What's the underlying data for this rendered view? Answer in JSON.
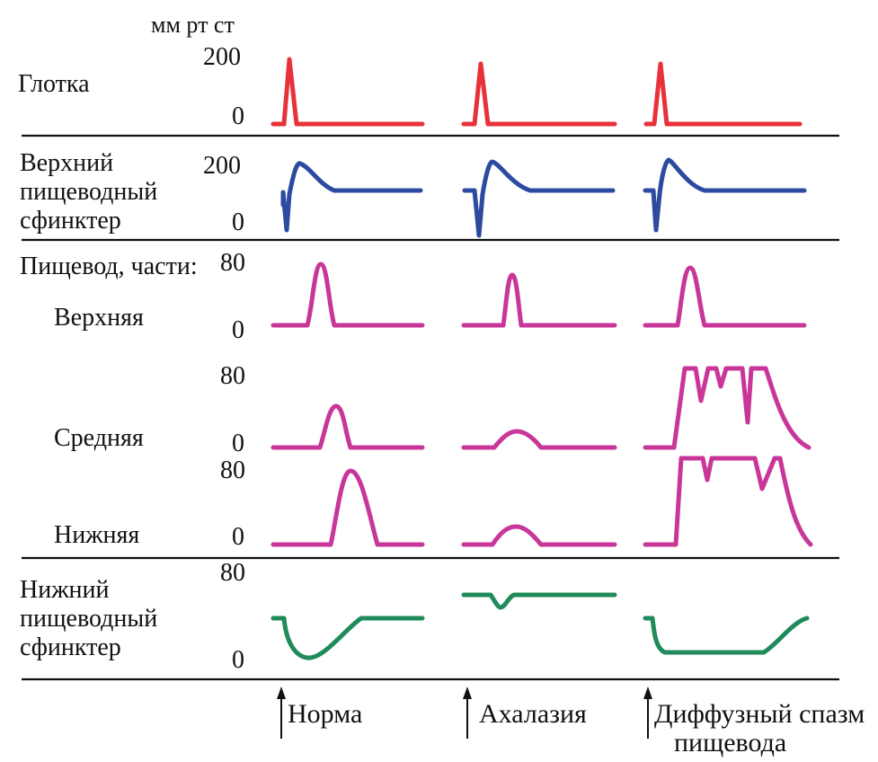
{
  "unit_label": "мм рт ст",
  "rows": {
    "pharynx": {
      "label_lines": [
        "Глотка"
      ],
      "scale_top": "200",
      "scale_bottom": "0"
    },
    "ues": {
      "label_lines": [
        "Верхний",
        "пищеводный",
        "сфинктер"
      ],
      "scale_top": "200",
      "scale_bottom": "0"
    },
    "esophagus_header": "Пищевод, части:",
    "upper": {
      "label": "Верхняя",
      "scale_top": "80",
      "scale_bottom": "0"
    },
    "middle": {
      "label": "Средняя",
      "scale_top": "80",
      "scale_bottom": "0"
    },
    "lower": {
      "label": "Нижняя",
      "scale_top": "80",
      "scale_bottom": "0"
    },
    "les": {
      "label_lines": [
        "Нижний",
        "пищеводный",
        "сфинктер"
      ],
      "scale_top": "80",
      "scale_bottom": "0"
    }
  },
  "conditions": [
    {
      "lines": [
        "Норма"
      ]
    },
    {
      "lines": [
        "Ахалазия"
      ]
    },
    {
      "lines": [
        "Диффузный спазм",
        "пищевода"
      ]
    }
  ],
  "colors": {
    "pharynx": "#e8323a",
    "ues": "#2c4aa0",
    "esophagus": "#c8369a",
    "les": "#1f8a5a",
    "separator": "#111111"
  },
  "icons": {
    "condition_marker": "up-arrow-icon"
  }
}
